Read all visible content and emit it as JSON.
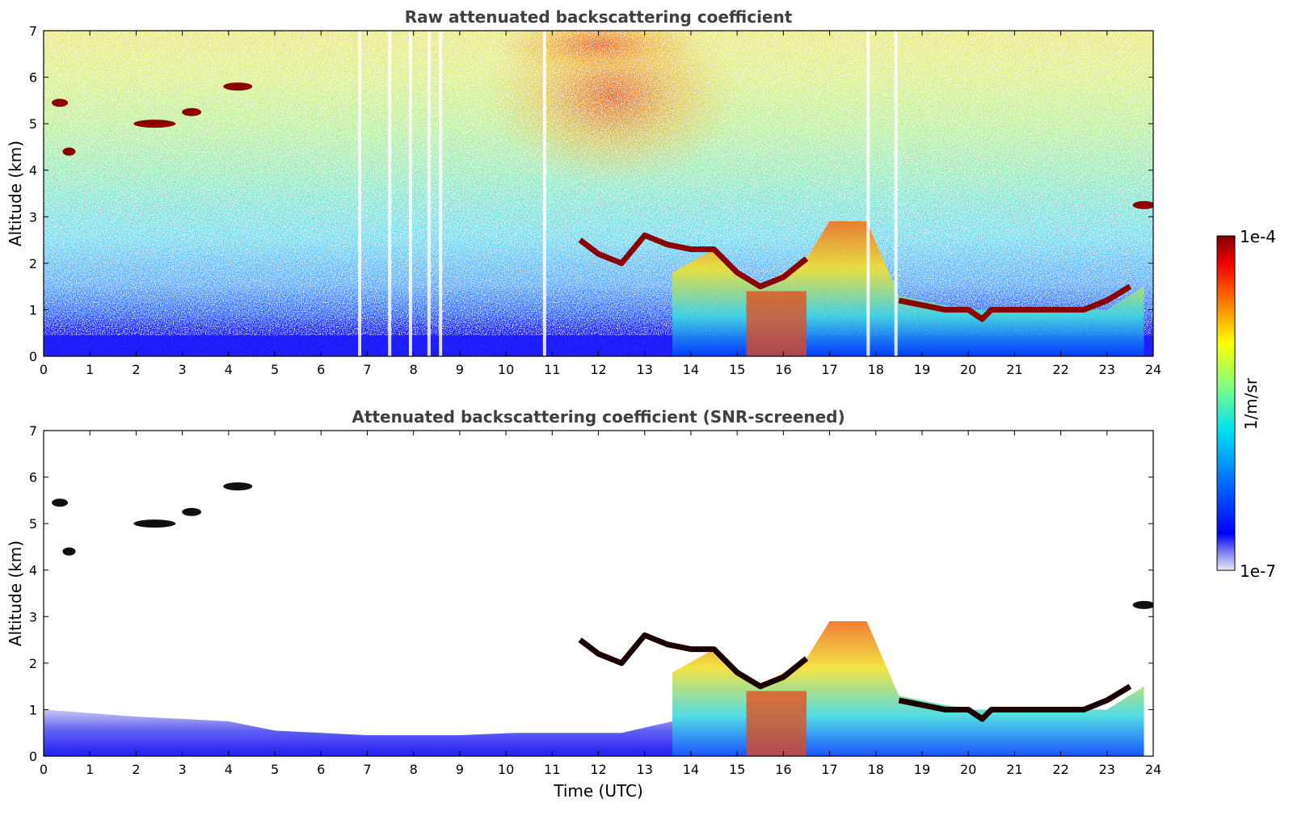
{
  "figure": {
    "xlabel": "Time (UTC)",
    "colorbar": {
      "label": "1/m/sr",
      "max_label": "1e-4",
      "min_label": "1e-7",
      "scale": "log",
      "colormap": "jet"
    }
  },
  "chart_data": [
    {
      "type": "heatmap",
      "title": "Raw attenuated backscattering coefficient",
      "xlabel": "",
      "ylabel": "Altitude (km)",
      "xlim": [
        0,
        24
      ],
      "ylim": [
        0,
        7
      ],
      "x_ticks": [
        "0",
        "1",
        "2",
        "3",
        "4",
        "5",
        "6",
        "7",
        "8",
        "9",
        "10",
        "11",
        "12",
        "13",
        "14",
        "15",
        "16",
        "17",
        "18",
        "19",
        "20",
        "21",
        "22",
        "23",
        "24"
      ],
      "y_ticks": [
        "0",
        "1",
        "2",
        "3",
        "4",
        "5",
        "6",
        "7"
      ],
      "grid": false,
      "cloud_layer_top_km": [
        {
          "time": 11.6,
          "alt": 2.5
        },
        {
          "time": 12.0,
          "alt": 2.2
        },
        {
          "time": 12.5,
          "alt": 2.0
        },
        {
          "time": 13.0,
          "alt": 2.6
        },
        {
          "time": 13.5,
          "alt": 2.4
        },
        {
          "time": 14.0,
          "alt": 2.3
        },
        {
          "time": 14.5,
          "alt": 2.3
        },
        {
          "time": 15.0,
          "alt": 1.8
        },
        {
          "time": 15.5,
          "alt": 1.5
        },
        {
          "time": 16.0,
          "alt": 1.7
        },
        {
          "time": 16.5,
          "alt": 2.1
        },
        {
          "time": 18.5,
          "alt": 1.2
        },
        {
          "time": 19.0,
          "alt": 1.1
        },
        {
          "time": 19.5,
          "alt": 1.0
        },
        {
          "time": 20.0,
          "alt": 1.0
        },
        {
          "time": 20.3,
          "alt": 0.8
        },
        {
          "time": 20.5,
          "alt": 1.0
        },
        {
          "time": 21.0,
          "alt": 1.0
        },
        {
          "time": 21.5,
          "alt": 1.0
        },
        {
          "time": 22.0,
          "alt": 1.0
        },
        {
          "time": 22.5,
          "alt": 1.0
        },
        {
          "time": 23.0,
          "alt": 1.2
        },
        {
          "time": 23.5,
          "alt": 1.5
        }
      ]
    },
    {
      "type": "heatmap",
      "title": "Attenuated backscattering coefficient (SNR-screened)",
      "xlabel": "Time (UTC)",
      "ylabel": "Altitude (km)",
      "xlim": [
        0,
        24
      ],
      "ylim": [
        0,
        7
      ],
      "x_ticks": [
        "0",
        "1",
        "2",
        "3",
        "4",
        "5",
        "6",
        "7",
        "8",
        "9",
        "10",
        "11",
        "12",
        "13",
        "14",
        "15",
        "16",
        "17",
        "18",
        "19",
        "20",
        "21",
        "22",
        "23",
        "24"
      ],
      "y_ticks": [
        "0",
        "1",
        "2",
        "3",
        "4",
        "5",
        "6",
        "7"
      ],
      "grid": false
    }
  ]
}
